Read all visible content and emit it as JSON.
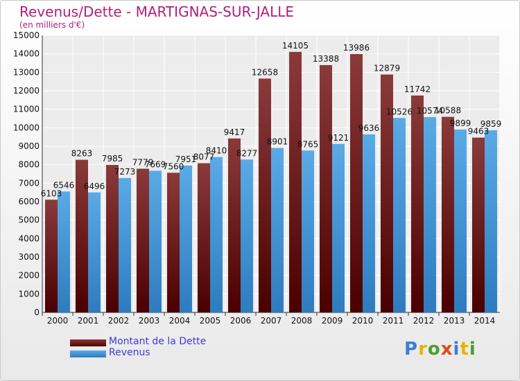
{
  "header": {
    "title": "Revenus/Dette - MARTIGNAS-SUR-JALLE",
    "subtitle": "(en milliers d'€)"
  },
  "colors": {
    "title": "#b0207a",
    "dette_top": "#8b3a3a",
    "dette_bottom": "#4a0000",
    "revenus_top": "#5aaae6",
    "revenus_bottom": "#2e7cbf",
    "legend_text": "#3b3bdc"
  },
  "legend": {
    "dette_label": "Montant de la Dette",
    "revenus_label": "Revenus"
  },
  "logo": {
    "text": "Proxiti",
    "letter_colors": [
      "#3a7fd5",
      "#e8b400",
      "#4a9e2f",
      "#e24a1a",
      "#3a7fd5",
      "#e8b400",
      "#4a9e2f"
    ]
  },
  "chart_data": {
    "type": "bar",
    "title": "Revenus/Dette - MARTIGNAS-SUR-JALLE",
    "subtitle": "(en milliers d'€)",
    "categories": [
      "2000",
      "2001",
      "2002",
      "2003",
      "2004",
      "2005",
      "2006",
      "2007",
      "2008",
      "2009",
      "2010",
      "2011",
      "2012",
      "2013",
      "2014"
    ],
    "series": [
      {
        "name": "Montant de la Dette",
        "values": [
          6103,
          8263,
          7985,
          7779,
          7560,
          8077,
          9417,
          12658,
          14105,
          13388,
          13986,
          12879,
          11742,
          10588,
          9463
        ],
        "labels": [
          "6103",
          "8263",
          "7985",
          "7779",
          "7560",
          "8077",
          "9417",
          "12658",
          "14105",
          "13388",
          "13986",
          "12879",
          "11742",
          "10588",
          "9463"
        ]
      },
      {
        "name": "Revenus",
        "values": [
          6546,
          6496,
          7273,
          7669,
          7951,
          8410,
          8277,
          8901,
          8765,
          9121,
          9636,
          10526,
          10574,
          9899,
          9859
        ],
        "labels": [
          "6546",
          "6496",
          "7273",
          "7669",
          "7951",
          "8410",
          "8277",
          "8901",
          "8765",
          "9121",
          "9636",
          "10526",
          "10574",
          "9899",
          "9859"
        ]
      }
    ],
    "ylim": [
      0,
      15000
    ],
    "yticks": [
      "0",
      "1000",
      "2000",
      "3000",
      "4000",
      "5000",
      "6000",
      "7000",
      "8000",
      "9000",
      "10000",
      "11000",
      "12000",
      "13000",
      "14000",
      "15000"
    ],
    "grid": true,
    "legend_position": "bottom-left"
  }
}
